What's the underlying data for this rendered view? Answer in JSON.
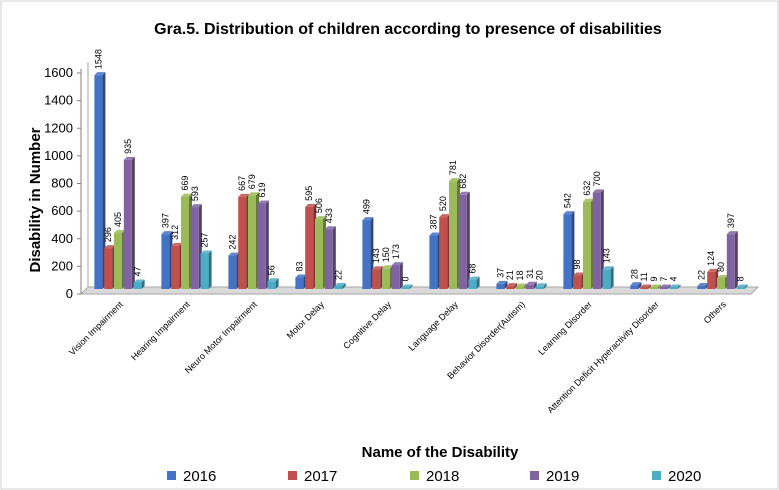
{
  "chart_data": {
    "type": "bar",
    "title": "Gra.5. Distribution of children according to presence of disabilities",
    "xlabel": "Name of the Disability",
    "ylabel": "Disability in Number",
    "ylim": [
      0,
      1600
    ],
    "yticks": [
      0,
      200,
      400,
      600,
      800,
      1000,
      1200,
      1400,
      1600
    ],
    "grid": false,
    "legend": "bottom",
    "categories": [
      "Vision Impairment",
      "Hearing Impairment",
      "Neuro Motor Impairment",
      "Motor Delay",
      "Cognitive Delay",
      "Language Delay",
      "Behavior Disorder(Autism)",
      "Learning Disorder",
      "Attention Deficit Hyperactivity Disorder",
      "Others"
    ],
    "series": [
      {
        "name": "2016",
        "color": "#4472c4",
        "values": [
          1548,
          397,
          242,
          83,
          499,
          387,
          37,
          542,
          28,
          22
        ]
      },
      {
        "name": "2017",
        "color": "#c0504d",
        "values": [
          296,
          312,
          667,
          595,
          143,
          520,
          21,
          98,
          11,
          124
        ]
      },
      {
        "name": "2018",
        "color": "#9bbb59",
        "values": [
          405,
          669,
          679,
          506,
          150,
          781,
          18,
          632,
          9,
          80
        ]
      },
      {
        "name": "2019",
        "color": "#8064a2",
        "values": [
          935,
          593,
          619,
          433,
          173,
          682,
          31,
          700,
          7,
          397
        ]
      },
      {
        "name": "2020",
        "color": "#4bacc6",
        "values": [
          47,
          257,
          56,
          22,
          0,
          68,
          20,
          143,
          4,
          8
        ]
      }
    ]
  }
}
